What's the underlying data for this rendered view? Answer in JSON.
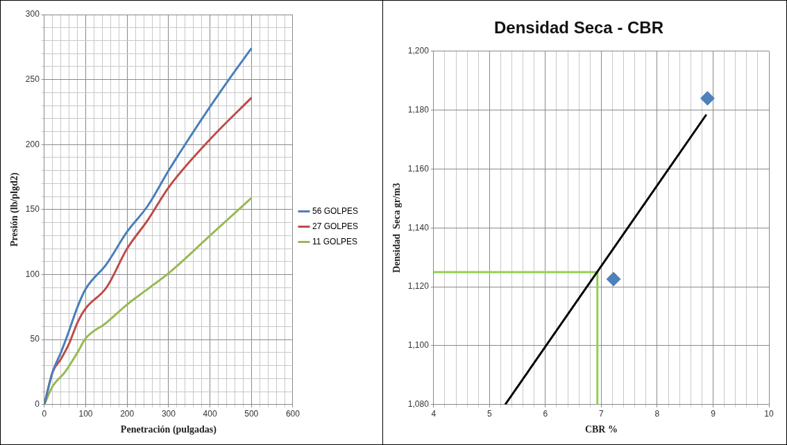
{
  "chart_data": [
    {
      "type": "line",
      "xlabel": "Penetración (pulgadas)",
      "ylabel": "Presión (lb/plgd2)",
      "grid": true,
      "legend": "right",
      "xlim": [
        0,
        600
      ],
      "ylim": [
        0,
        300
      ],
      "xticks": [
        0,
        {
          "value": 20,
          "label": null
        },
        {
          "value": 40,
          "label": null
        },
        {
          "value": 60,
          "label": null
        },
        {
          "value": 80,
          "label": null
        },
        100,
        {
          "value": 120,
          "label": null
        },
        {
          "value": 140,
          "label": null
        },
        {
          "value": 160,
          "label": null
        },
        {
          "value": 180,
          "label": null
        },
        200,
        {
          "value": 220,
          "label": null
        },
        {
          "value": 240,
          "label": null
        },
        {
          "value": 260,
          "label": null
        },
        {
          "value": 280,
          "label": null
        },
        300,
        {
          "value": 320,
          "label": null
        },
        {
          "value": 340,
          "label": null
        },
        {
          "value": 360,
          "label": null
        },
        {
          "value": 380,
          "label": null
        },
        400,
        {
          "value": 420,
          "label": null
        },
        {
          "value": 440,
          "label": null
        },
        {
          "value": 460,
          "label": null
        },
        {
          "value": 480,
          "label": null
        },
        500,
        {
          "value": 520,
          "label": null
        },
        {
          "value": 540,
          "label": null
        },
        {
          "value": 560,
          "label": null
        },
        {
          "value": 580,
          "label": null
        },
        600
      ],
      "yticks": [
        0,
        {
          "value": 10,
          "label": null
        },
        {
          "value": 20,
          "label": null
        },
        {
          "value": 30,
          "label": null
        },
        {
          "value": 40,
          "label": null
        },
        50,
        {
          "value": 60,
          "label": null
        },
        {
          "value": 70,
          "label": null
        },
        {
          "value": 80,
          "label": null
        },
        {
          "value": 90,
          "label": null
        },
        100,
        {
          "value": 110,
          "label": null
        },
        {
          "value": 120,
          "label": null
        },
        {
          "value": 130,
          "label": null
        },
        {
          "value": 140,
          "label": null
        },
        150,
        {
          "value": 160,
          "label": null
        },
        {
          "value": 170,
          "label": null
        },
        {
          "value": 180,
          "label": null
        },
        {
          "value": 190,
          "label": null
        },
        200,
        {
          "value": 210,
          "label": null
        },
        {
          "value": 220,
          "label": null
        },
        {
          "value": 230,
          "label": null
        },
        {
          "value": 240,
          "label": null
        },
        250,
        {
          "value": 260,
          "label": null
        },
        {
          "value": 270,
          "label": null
        },
        {
          "value": 280,
          "label": null
        },
        {
          "value": 290,
          "label": null
        },
        300
      ],
      "series": [
        {
          "name": "56 GOLPES",
          "color": "#4a7ebb",
          "x": [
            0,
            20,
            40,
            60,
            80,
            100,
            150,
            200,
            250,
            300,
            350,
            400,
            450,
            500
          ],
          "values": [
            0,
            25,
            40,
            57,
            75,
            89,
            108,
            133,
            153,
            180,
            205,
            229,
            252,
            274
          ]
        },
        {
          "name": "27 GOLPES",
          "color": "#be4b48",
          "x": [
            0,
            20,
            40,
            60,
            80,
            100,
            150,
            200,
            250,
            300,
            400,
            500
          ],
          "values": [
            0,
            25,
            35,
            47,
            63,
            74,
            90,
            120,
            142,
            167,
            204,
            236
          ]
        },
        {
          "name": "11 GOLPES",
          "color": "#98b954",
          "x": [
            0,
            20,
            50,
            80,
            100,
            150,
            200,
            250,
            300,
            400,
            500
          ],
          "values": [
            0,
            14,
            25,
            40,
            51,
            63,
            77,
            89,
            101,
            130,
            159
          ]
        }
      ]
    },
    {
      "type": "scatter",
      "title": "Densidad Seca - CBR",
      "xlabel": "CBR %",
      "ylabel": "Densidad  Seca gr/m3",
      "grid": true,
      "xlim": [
        4,
        10
      ],
      "ylim": [
        1080,
        1200
      ],
      "xticks": [
        4,
        {
          "value": 4.2,
          "label": null
        },
        {
          "value": 4.4,
          "label": null
        },
        {
          "value": 4.6,
          "label": null
        },
        {
          "value": 4.8,
          "label": null
        },
        5,
        {
          "value": 5.2,
          "label": null
        },
        {
          "value": 5.4,
          "label": null
        },
        {
          "value": 5.6,
          "label": null
        },
        {
          "value": 5.8,
          "label": null
        },
        6,
        {
          "value": 6.2,
          "label": null
        },
        {
          "value": 6.4,
          "label": null
        },
        {
          "value": 6.6,
          "label": null
        },
        {
          "value": 6.8,
          "label": null
        },
        7,
        {
          "value": 7.2,
          "label": null
        },
        {
          "value": 7.4,
          "label": null
        },
        {
          "value": 7.6,
          "label": null
        },
        {
          "value": 7.8,
          "label": null
        },
        8,
        {
          "value": 8.2,
          "label": null
        },
        {
          "value": 8.4,
          "label": null
        },
        {
          "value": 8.6,
          "label": null
        },
        {
          "value": 8.8,
          "label": null
        },
        9,
        {
          "value": 9.2,
          "label": null
        },
        {
          "value": 9.4,
          "label": null
        },
        {
          "value": 9.6,
          "label": null
        },
        {
          "value": 9.8,
          "label": null
        },
        10
      ],
      "yticks": [
        {
          "value": 1080,
          "label": "1,080"
        },
        {
          "value": 1100,
          "label": "1,100"
        },
        {
          "value": 1120,
          "label": "1,120"
        },
        {
          "value": 1140,
          "label": "1,140"
        },
        {
          "value": 1160,
          "label": "1,160"
        },
        {
          "value": 1180,
          "label": "1,180"
        },
        {
          "value": 1200,
          "label": "1,200"
        }
      ],
      "series": [
        {
          "type": "line",
          "color": "#000000",
          "x": [
            5.28,
            8.88
          ],
          "values": [
            1080,
            1178.5
          ]
        },
        {
          "type": "line",
          "color": "#92d050",
          "x": [
            4,
            6.93,
            6.93
          ],
          "values": [
            1125,
            1125,
            1080
          ]
        },
        {
          "type": "scatter",
          "color": "#4f81bd",
          "marker": "diamond",
          "x": [
            7.22,
            8.9
          ],
          "values": [
            1122.6,
            1184
          ]
        }
      ]
    }
  ]
}
